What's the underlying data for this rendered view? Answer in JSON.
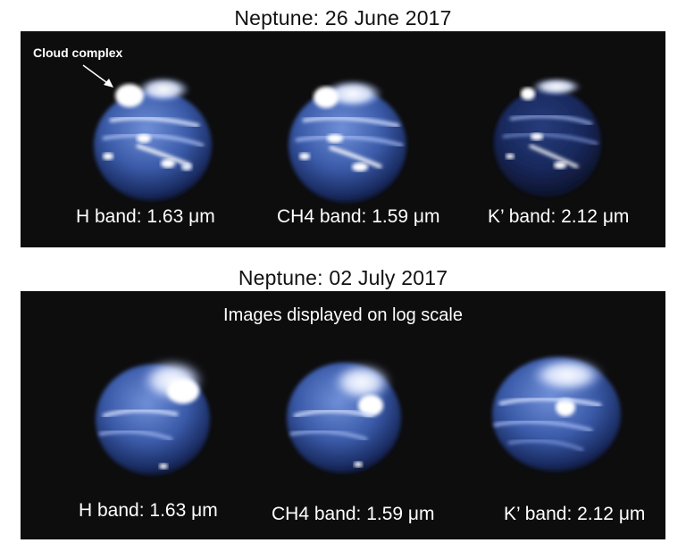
{
  "top_section": {
    "title": "Neptune: 26 June 2017",
    "callout": "Cloud complex",
    "bands": [
      {
        "label": "H band: 1.63 μm"
      },
      {
        "label": "CH4 band: 1.59 μm"
      },
      {
        "label": "K’ band: 2.12 μm"
      }
    ]
  },
  "bottom_section": {
    "title": "Neptune: 02 July 2017",
    "note": "Images displayed on log scale",
    "bands": [
      {
        "label": "H band: 1.63 μm"
      },
      {
        "label": "CH4 band: 1.59 μm"
      },
      {
        "label": "K’ band: 2.12 μm"
      }
    ]
  },
  "colors": {
    "panel_background": "#0d0d0e",
    "planet_body": "#3a5aa8",
    "cloud_highlight": "#ffffff"
  }
}
